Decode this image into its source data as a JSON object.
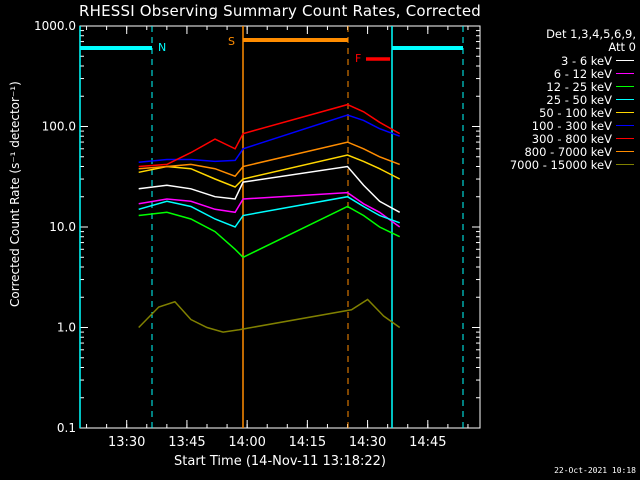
{
  "chart_data": {
    "type": "line",
    "title": "RHESSI Observing Summary Count Rates, Corrected",
    "xlabel": "Start Time (14-Nov-11 13:18:22)",
    "ylabel": "Corrected Count Rate (s⁻¹ detector⁻¹)",
    "y_scale": "log",
    "ylim": [
      0.1,
      1000.0
    ],
    "xlim": [
      "13:18:22",
      "14:58:00"
    ],
    "x_tick_labels": [
      "13:30",
      "13:45",
      "14:00",
      "14:15",
      "14:30",
      "14:45"
    ],
    "y_tick_labels": [
      "0.1",
      "1.0",
      "10.0",
      "100.0",
      "1000.0"
    ],
    "legend": {
      "header_lines": [
        "Det 1,3,4,5,6,9,",
        "Att 0"
      ],
      "position": "right"
    },
    "series": [
      {
        "name": "3 - 6 keV",
        "color": "#ffffff",
        "x": [
          "13:33",
          "13:40",
          "13:46",
          "13:52",
          "13:57",
          "13:59",
          "14:25",
          "14:29",
          "14:33",
          "14:38"
        ],
        "y": [
          24,
          26,
          24,
          20,
          19,
          28,
          40,
          26,
          18,
          14
        ]
      },
      {
        "name": "6 - 12 keV",
        "color": "#ff00ff",
        "x": [
          "13:33",
          "13:40",
          "13:46",
          "13:52",
          "13:57",
          "13:59",
          "14:25",
          "14:29",
          "14:33",
          "14:38"
        ],
        "y": [
          17,
          19,
          18,
          15,
          14,
          19,
          22,
          17,
          14,
          10
        ]
      },
      {
        "name": "12 - 25 keV",
        "color": "#00ff00",
        "x": [
          "13:33",
          "13:40",
          "13:46",
          "13:52",
          "13:57",
          "13:59",
          "14:25",
          "14:29",
          "14:33",
          "14:38"
        ],
        "y": [
          13,
          14,
          12,
          9,
          6,
          5,
          16,
          13,
          10,
          8
        ]
      },
      {
        "name": "25 - 50 keV",
        "color": "#00ffff",
        "x": [
          "13:33",
          "13:40",
          "13:46",
          "13:52",
          "13:57",
          "13:59",
          "14:25",
          "14:29",
          "14:33",
          "14:38"
        ],
        "y": [
          15,
          18,
          16,
          12,
          10,
          13,
          20,
          16,
          13,
          11
        ]
      },
      {
        "name": "50 - 100 keV",
        "color": "#ffd700",
        "x": [
          "13:33",
          "13:40",
          "13:46",
          "13:52",
          "13:57",
          "13:59",
          "14:25",
          "14:29",
          "14:33",
          "14:38"
        ],
        "y": [
          35,
          40,
          38,
          30,
          25,
          30,
          52,
          45,
          38,
          30
        ]
      },
      {
        "name": "100 - 300 keV",
        "color": "#0000ff",
        "x": [
          "13:33",
          "13:40",
          "13:46",
          "13:52",
          "13:57",
          "13:59",
          "14:25",
          "14:29",
          "14:33",
          "14:38"
        ],
        "y": [
          44,
          47,
          47,
          45,
          46,
          60,
          130,
          115,
          95,
          80
        ]
      },
      {
        "name": "300 - 800 keV",
        "color": "#ff0000",
        "x": [
          "13:33",
          "13:40",
          "13:46",
          "13:52",
          "13:57",
          "13:59",
          "14:25",
          "14:29",
          "14:33",
          "14:38"
        ],
        "y": [
          40,
          42,
          55,
          75,
          60,
          85,
          165,
          140,
          110,
          85
        ]
      },
      {
        "name": "800 - 7000 keV",
        "color": "#ff8c00",
        "x": [
          "13:33",
          "13:40",
          "13:46",
          "13:52",
          "13:57",
          "13:59",
          "14:25",
          "14:29",
          "14:33",
          "14:38"
        ],
        "y": [
          38,
          40,
          42,
          38,
          32,
          40,
          70,
          60,
          50,
          42
        ]
      },
      {
        "name": "7000 - 15000 keV",
        "color": "#808000",
        "x": [
          "13:33",
          "13:38",
          "13:42",
          "13:46",
          "13:50",
          "13:54",
          "13:58",
          "14:26",
          "14:30",
          "14:34",
          "14:38"
        ],
        "y": [
          1.0,
          1.6,
          1.8,
          1.2,
          1.0,
          0.9,
          0.95,
          1.5,
          1.9,
          1.3,
          1.0
        ]
      }
    ],
    "annotations": [
      {
        "label": "N",
        "color": "#00ffff",
        "position": "top"
      },
      {
        "label": "S",
        "color": "#ff8c00",
        "position": "top"
      },
      {
        "label": "F",
        "color": "#ff0000",
        "position": "top"
      }
    ],
    "timestamp": "22-Oct-2021 10:18"
  }
}
